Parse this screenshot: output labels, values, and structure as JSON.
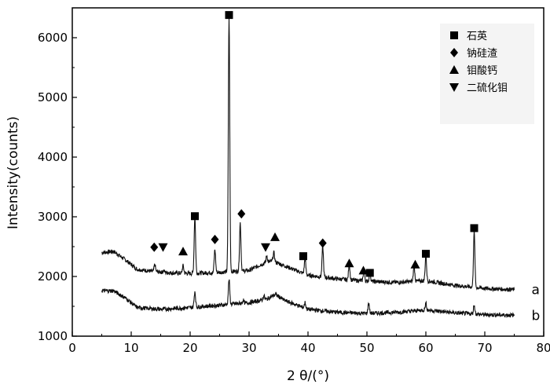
{
  "chart_data": {
    "type": "line",
    "xlabel": "2 θ/(°)",
    "ylabel": "Intensity(counts)",
    "xlim": [
      0,
      80
    ],
    "ylim": [
      1000,
      6500
    ],
    "x_ticks": [
      "0",
      "10",
      "20",
      "30",
      "40",
      "50",
      "60",
      "70",
      "80"
    ],
    "y_ticks": [
      "1000",
      "2000",
      "3000",
      "4000",
      "5000",
      "6000"
    ],
    "grid": false,
    "legend_position": "top-right",
    "legend": [
      {
        "symbol": "square",
        "label": "石英"
      },
      {
        "symbol": "diamond",
        "label": "钠硅渣"
      },
      {
        "symbol": "triangle-up",
        "label": "钼酸钙"
      },
      {
        "symbol": "triangle-down",
        "label": "二硫化钼"
      }
    ],
    "series": [
      {
        "label": "a",
        "baseline": [
          [
            5,
            2400
          ],
          [
            7,
            2420
          ],
          [
            9,
            2280
          ],
          [
            11,
            2120
          ],
          [
            14,
            2080
          ],
          [
            17,
            2060
          ],
          [
            20,
            2050
          ],
          [
            25,
            2070
          ],
          [
            30,
            2100
          ],
          [
            32,
            2200
          ],
          [
            34,
            2260
          ],
          [
            36,
            2180
          ],
          [
            40,
            2020
          ],
          [
            45,
            1960
          ],
          [
            50,
            1920
          ],
          [
            55,
            1900
          ],
          [
            60,
            1930
          ],
          [
            65,
            1850
          ],
          [
            70,
            1800
          ],
          [
            75,
            1780
          ]
        ],
        "peaks": [
          [
            14,
            2200
          ],
          [
            15.5,
            2100
          ],
          [
            18.8,
            2180
          ],
          [
            20.8,
            3000
          ],
          [
            24.2,
            2450
          ],
          [
            26.6,
            6350
          ],
          [
            28.5,
            2900
          ],
          [
            33,
            2350
          ],
          [
            34.2,
            2400
          ],
          [
            39.5,
            2300
          ],
          [
            42.5,
            2500
          ],
          [
            47,
            2200
          ],
          [
            49.5,
            2120
          ],
          [
            50.5,
            2080
          ],
          [
            58,
            2180
          ],
          [
            60,
            2350
          ],
          [
            68.2,
            2750
          ]
        ]
      },
      {
        "label": "b",
        "baseline": [
          [
            5,
            1760
          ],
          [
            7,
            1760
          ],
          [
            9,
            1640
          ],
          [
            11,
            1480
          ],
          [
            15,
            1450
          ],
          [
            20,
            1480
          ],
          [
            25,
            1520
          ],
          [
            30,
            1560
          ],
          [
            33,
            1620
          ],
          [
            34.5,
            1700
          ],
          [
            36,
            1600
          ],
          [
            40,
            1450
          ],
          [
            45,
            1400
          ],
          [
            50,
            1380
          ],
          [
            55,
            1400
          ],
          [
            60,
            1440
          ],
          [
            65,
            1390
          ],
          [
            70,
            1360
          ],
          [
            75,
            1350
          ]
        ],
        "peaks": [
          [
            20.8,
            1750
          ],
          [
            26.6,
            1950
          ],
          [
            29,
            1600
          ],
          [
            32.5,
            1680
          ],
          [
            39.5,
            1560
          ],
          [
            50.3,
            1560
          ],
          [
            60,
            1550
          ],
          [
            68.2,
            1520
          ]
        ]
      }
    ],
    "markers": [
      {
        "symbol": "square",
        "x": 26.6,
        "y": 6380
      },
      {
        "symbol": "square",
        "x": 20.8,
        "y": 3010
      },
      {
        "symbol": "square",
        "x": 39.2,
        "y": 2340
      },
      {
        "symbol": "square",
        "x": 50.5,
        "y": 2060
      },
      {
        "symbol": "square",
        "x": 60.0,
        "y": 2380
      },
      {
        "symbol": "square",
        "x": 68.2,
        "y": 2810
      },
      {
        "symbol": "diamond",
        "x": 13.9,
        "y": 2490
      },
      {
        "symbol": "diamond",
        "x": 24.2,
        "y": 2620
      },
      {
        "symbol": "diamond",
        "x": 28.7,
        "y": 3050
      },
      {
        "symbol": "diamond",
        "x": 42.5,
        "y": 2560
      },
      {
        "symbol": "triangle-up",
        "x": 18.8,
        "y": 2420
      },
      {
        "symbol": "triangle-up",
        "x": 34.4,
        "y": 2660
      },
      {
        "symbol": "triangle-up",
        "x": 47.0,
        "y": 2220
      },
      {
        "symbol": "triangle-up",
        "x": 49.4,
        "y": 2100
      },
      {
        "symbol": "triangle-up",
        "x": 58.2,
        "y": 2200
      },
      {
        "symbol": "triangle-down",
        "x": 15.4,
        "y": 2490
      },
      {
        "symbol": "triangle-down",
        "x": 32.8,
        "y": 2490
      }
    ]
  }
}
